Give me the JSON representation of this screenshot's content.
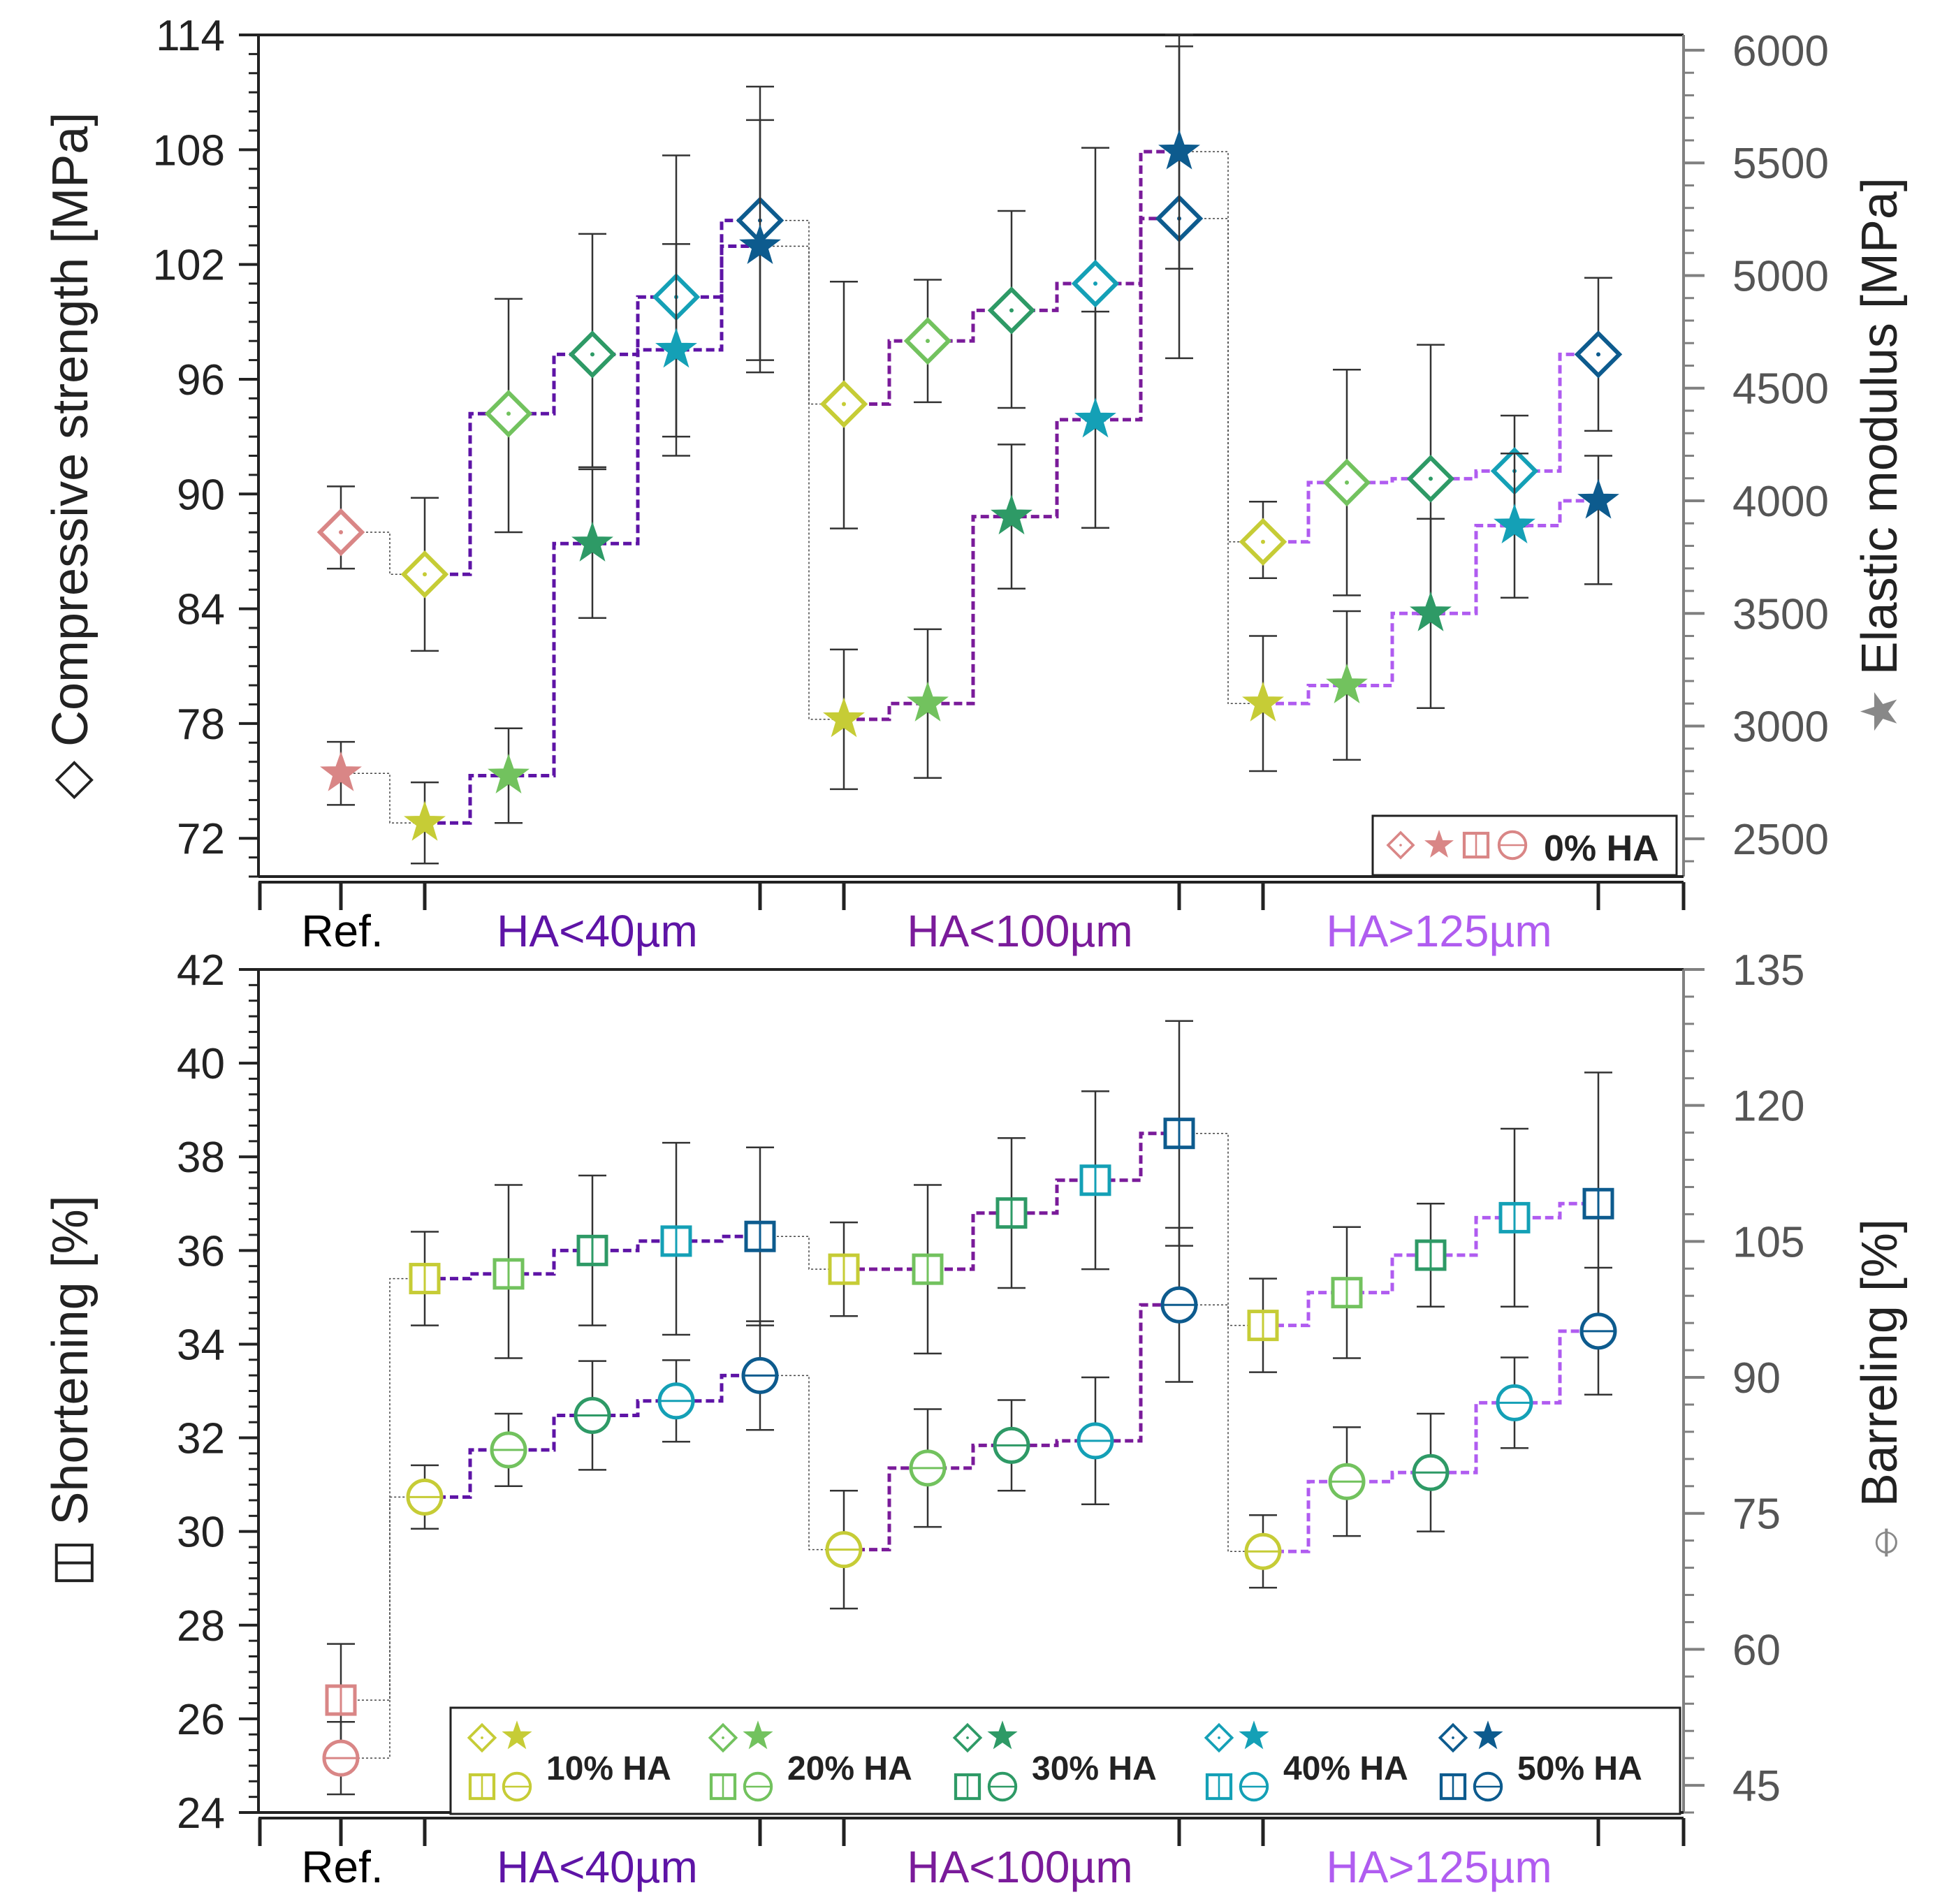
{
  "colors": {
    "ref": "#d98686",
    "ha10": "#c6cc36",
    "ha20": "#72c25e",
    "ha30": "#2e9a66",
    "ha40": "#14a0b6",
    "ha50": "#0d5b8e",
    "step40": "#5e14a6",
    "step100": "#7a1b9a",
    "step125": "#b05cf0",
    "axis": "#222222",
    "right_axis": "#808080",
    "error": "#333333"
  },
  "chart_data": [
    {
      "id": "top",
      "type": "scatter",
      "xlabel_groups": [
        {
          "label": "Ref.",
          "color": "#000000"
        },
        {
          "label": "HA<40µm",
          "color": "#5e14a6"
        },
        {
          "label": "HA<100µm",
          "color": "#7a1b9a"
        },
        {
          "label": "HA>125µm",
          "color": "#b05cf0"
        }
      ],
      "left_axis": {
        "label": "Compressive strength [MPa]",
        "symbol": "◇",
        "ylim": [
          70,
          114
        ],
        "ticks": [
          72,
          78,
          84,
          90,
          96,
          102,
          108,
          114
        ]
      },
      "right_axis": {
        "label": "Elastic modulus [MPa]",
        "symbol": "★",
        "ylim": [
          2332,
          6068
        ],
        "ticks": [
          2500,
          3000,
          3500,
          4000,
          4500,
          5000,
          5500,
          6000
        ]
      },
      "legend": {
        "symbols": "◇★◫⊖",
        "label": "0% HA"
      },
      "series": [
        {
          "name": "Compressive strength",
          "marker": "diamond",
          "axis": "left",
          "values": [
            88.0,
            85.8,
            94.2,
            97.3,
            100.3,
            104.3,
            94.7,
            98.0,
            99.6,
            101.0,
            104.4,
            87.5,
            90.6,
            90.8,
            91.2,
            97.3
          ],
          "err_plus": [
            2.4,
            4.0,
            6.0,
            6.3,
            7.4,
            7.0,
            6.4,
            3.2,
            5.2,
            7.1,
            9.0,
            2.1,
            5.9,
            7.0,
            2.9,
            4.0
          ],
          "err_minus": [
            1.9,
            4.0,
            6.2,
            5.9,
            7.3,
            7.3,
            6.5,
            3.2,
            5.1,
            7.0,
            7.3,
            1.9,
            5.9,
            7.1,
            2.9,
            4.0
          ]
        },
        {
          "name": "Elastic modulus",
          "marker": "star",
          "axis": "right",
          "values": [
            2790,
            2570,
            2780,
            3810,
            4670,
            5130,
            3030,
            3100,
            3930,
            4360,
            5550,
            3100,
            3180,
            3500,
            3890,
            4000
          ],
          "err_plus": [
            140,
            180,
            210,
            330,
            470,
            560,
            310,
            330,
            320,
            480,
            520,
            300,
            330,
            420,
            320,
            200
          ],
          "err_minus": [
            140,
            180,
            210,
            330,
            470,
            560,
            310,
            330,
            320,
            480,
            520,
            300,
            330,
            420,
            320,
            370
          ]
        }
      ]
    },
    {
      "id": "bottom",
      "type": "scatter",
      "xlabel_groups": [
        {
          "label": "Ref.",
          "color": "#000000"
        },
        {
          "label": "HA<40µm",
          "color": "#5e14a6"
        },
        {
          "label": "HA<100µm",
          "color": "#7a1b9a"
        },
        {
          "label": "HA>125µm",
          "color": "#b05cf0"
        }
      ],
      "left_axis": {
        "label": "Shortening [%]",
        "symbol": "◫",
        "ylim": [
          24,
          42
        ],
        "ticks": [
          24,
          26,
          28,
          30,
          32,
          34,
          36,
          38,
          40,
          42
        ]
      },
      "right_axis": {
        "label": "Barreling [%]",
        "symbol": "⦵",
        "ylim": [
          42,
          135
        ],
        "ticks": [
          45,
          60,
          75,
          90,
          105,
          120,
          135
        ]
      },
      "legend": [
        {
          "symbols": "◇★",
          "symbols2": "◫⊖",
          "label": "10% HA"
        },
        {
          "symbols": "◇★",
          "symbols2": "◫⊖",
          "label": "20% HA"
        },
        {
          "symbols": "◇★",
          "symbols2": "◫⊖",
          "label": "30% HA"
        },
        {
          "symbols": "◇★",
          "symbols2": "◫⊖",
          "label": "40% HA"
        },
        {
          "symbols": "◇★",
          "symbols2": "◫⊖",
          "label": "50% HA"
        }
      ],
      "series": [
        {
          "name": "Shortening",
          "marker": "square",
          "axis": "left",
          "values": [
            26.4,
            35.4,
            35.5,
            36.0,
            36.2,
            36.3,
            35.6,
            35.6,
            36.8,
            37.5,
            38.5,
            34.4,
            35.1,
            35.9,
            36.7,
            37.0
          ],
          "err_plus": [
            1.2,
            1.0,
            1.9,
            1.6,
            2.1,
            1.9,
            1.0,
            1.8,
            1.6,
            1.9,
            2.4,
            1.0,
            1.4,
            1.1,
            1.9,
            2.8
          ],
          "err_minus": [
            1.3,
            1.0,
            1.8,
            1.6,
            2.0,
            1.9,
            1.0,
            1.8,
            1.6,
            1.9,
            2.4,
            1.0,
            1.4,
            1.1,
            1.9,
            2.8
          ]
        },
        {
          "name": "Barreling",
          "marker": "circle",
          "axis": "right",
          "values": [
            48.0,
            76.8,
            82.0,
            85.8,
            87.4,
            90.2,
            71.0,
            80.0,
            82.5,
            83.0,
            98.0,
            70.8,
            78.5,
            79.5,
            87.2,
            95.1
          ],
          "err_plus": [
            4.0,
            3.5,
            4.0,
            6.0,
            4.5,
            6.0,
            6.5,
            6.5,
            5.0,
            7.0,
            8.5,
            4.0,
            6.0,
            6.5,
            5.0,
            7.0
          ],
          "err_minus": [
            4.0,
            3.5,
            4.0,
            6.0,
            4.5,
            6.0,
            6.5,
            6.5,
            5.0,
            7.0,
            8.5,
            4.0,
            6.0,
            6.5,
            5.0,
            7.0
          ]
        }
      ]
    }
  ]
}
